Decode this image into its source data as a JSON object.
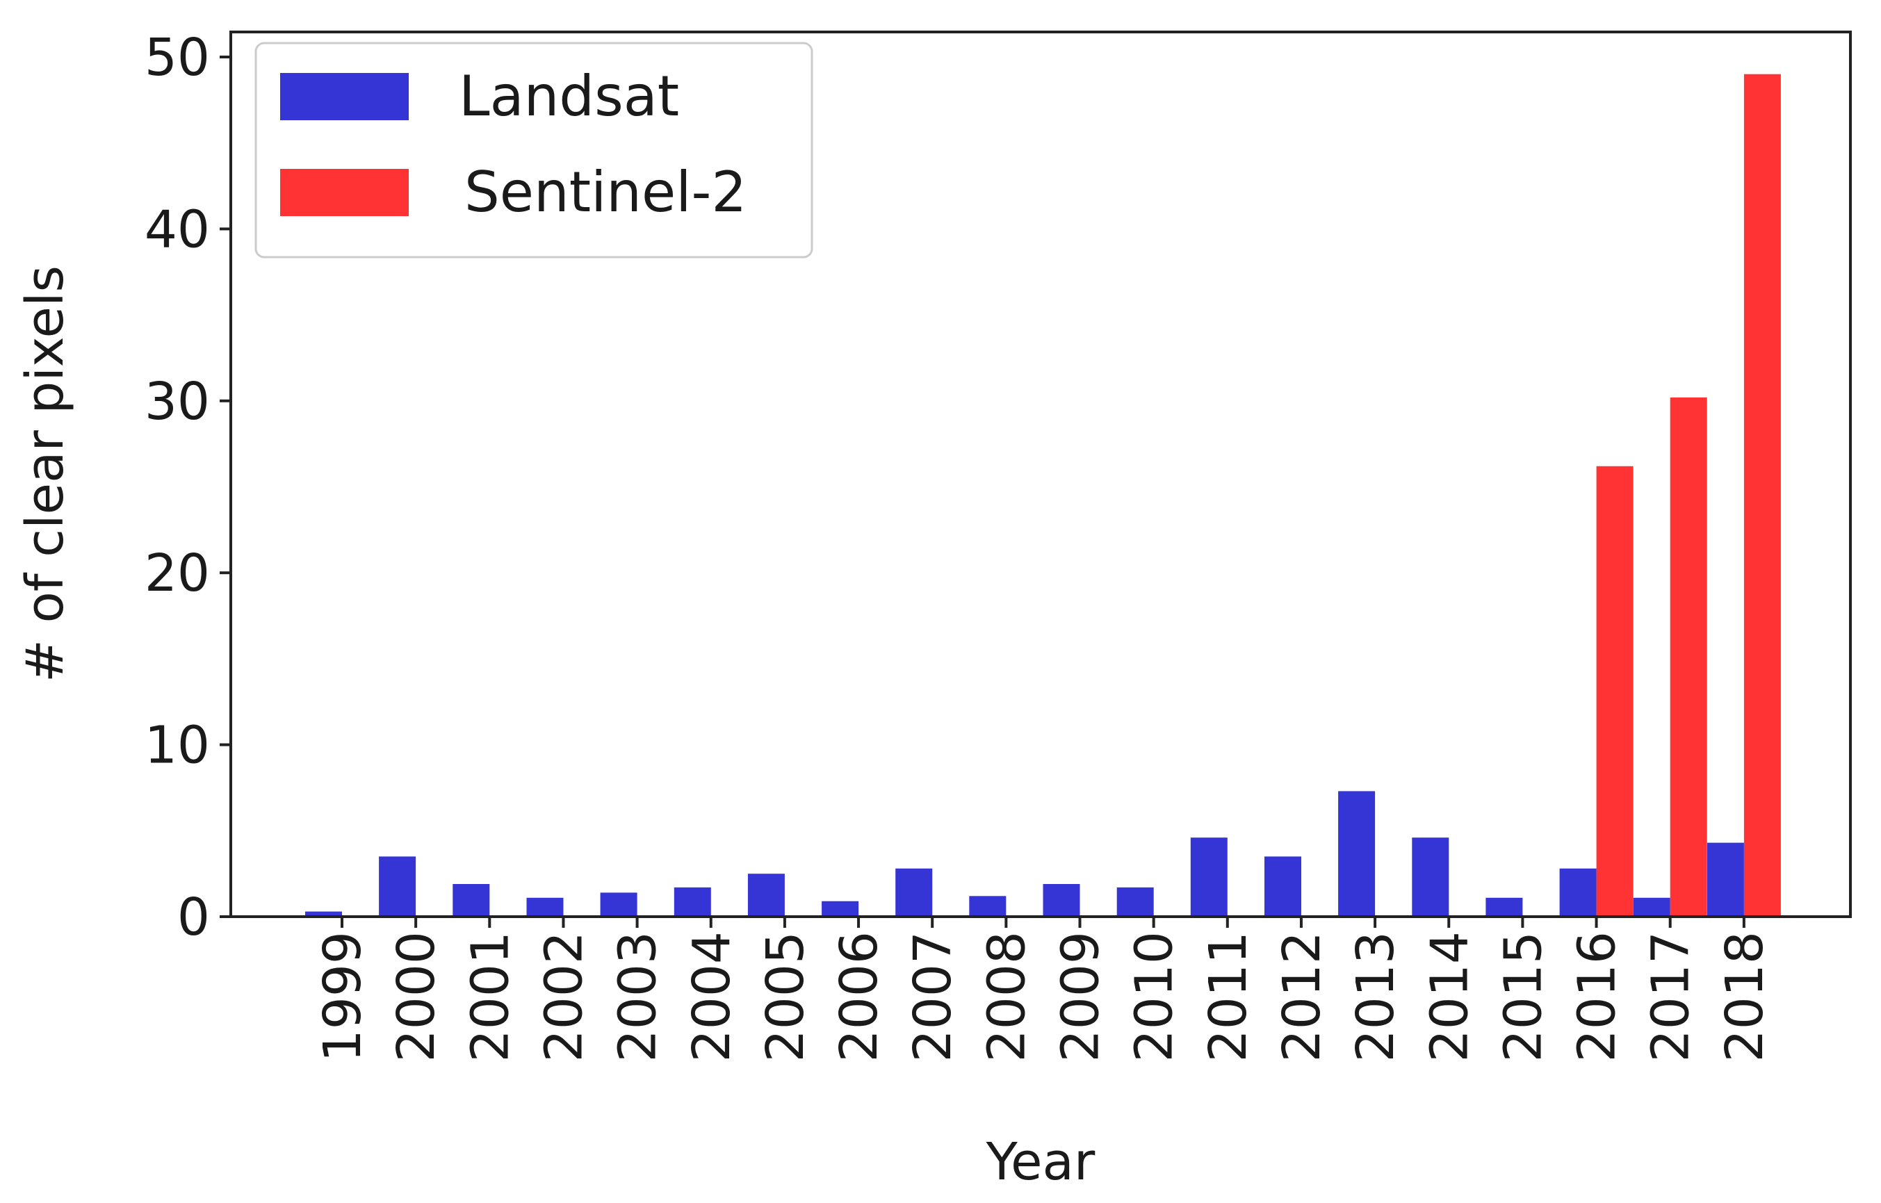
{
  "chart_data": {
    "type": "bar",
    "xlabel": "Year",
    "ylabel": "# of clear pixels",
    "categories": [
      "1999",
      "2000",
      "2001",
      "2002",
      "2003",
      "2004",
      "2005",
      "2006",
      "2007",
      "2008",
      "2009",
      "2010",
      "2011",
      "2012",
      "2013",
      "2014",
      "2015",
      "2016",
      "2017",
      "2018"
    ],
    "series": [
      {
        "name": "Landsat",
        "color": "#3535d6",
        "values": [
          0.3,
          3.5,
          1.9,
          1.1,
          1.4,
          1.7,
          2.5,
          0.9,
          2.8,
          1.2,
          1.9,
          1.7,
          4.6,
          3.5,
          7.3,
          4.6,
          1.1,
          2.8,
          1.1,
          4.3
        ]
      },
      {
        "name": "Sentinel-2",
        "color": "#ff3333",
        "values": [
          0,
          0,
          0,
          0,
          0,
          0,
          0,
          0,
          0,
          0,
          0,
          0,
          0,
          0,
          0,
          0,
          0,
          26.2,
          30.2,
          49.0
        ]
      }
    ],
    "ylim": [
      0,
      50
    ],
    "yticks": [
      0,
      10,
      20,
      30,
      40,
      50
    ],
    "grid": false,
    "legend_position": "top-left"
  }
}
